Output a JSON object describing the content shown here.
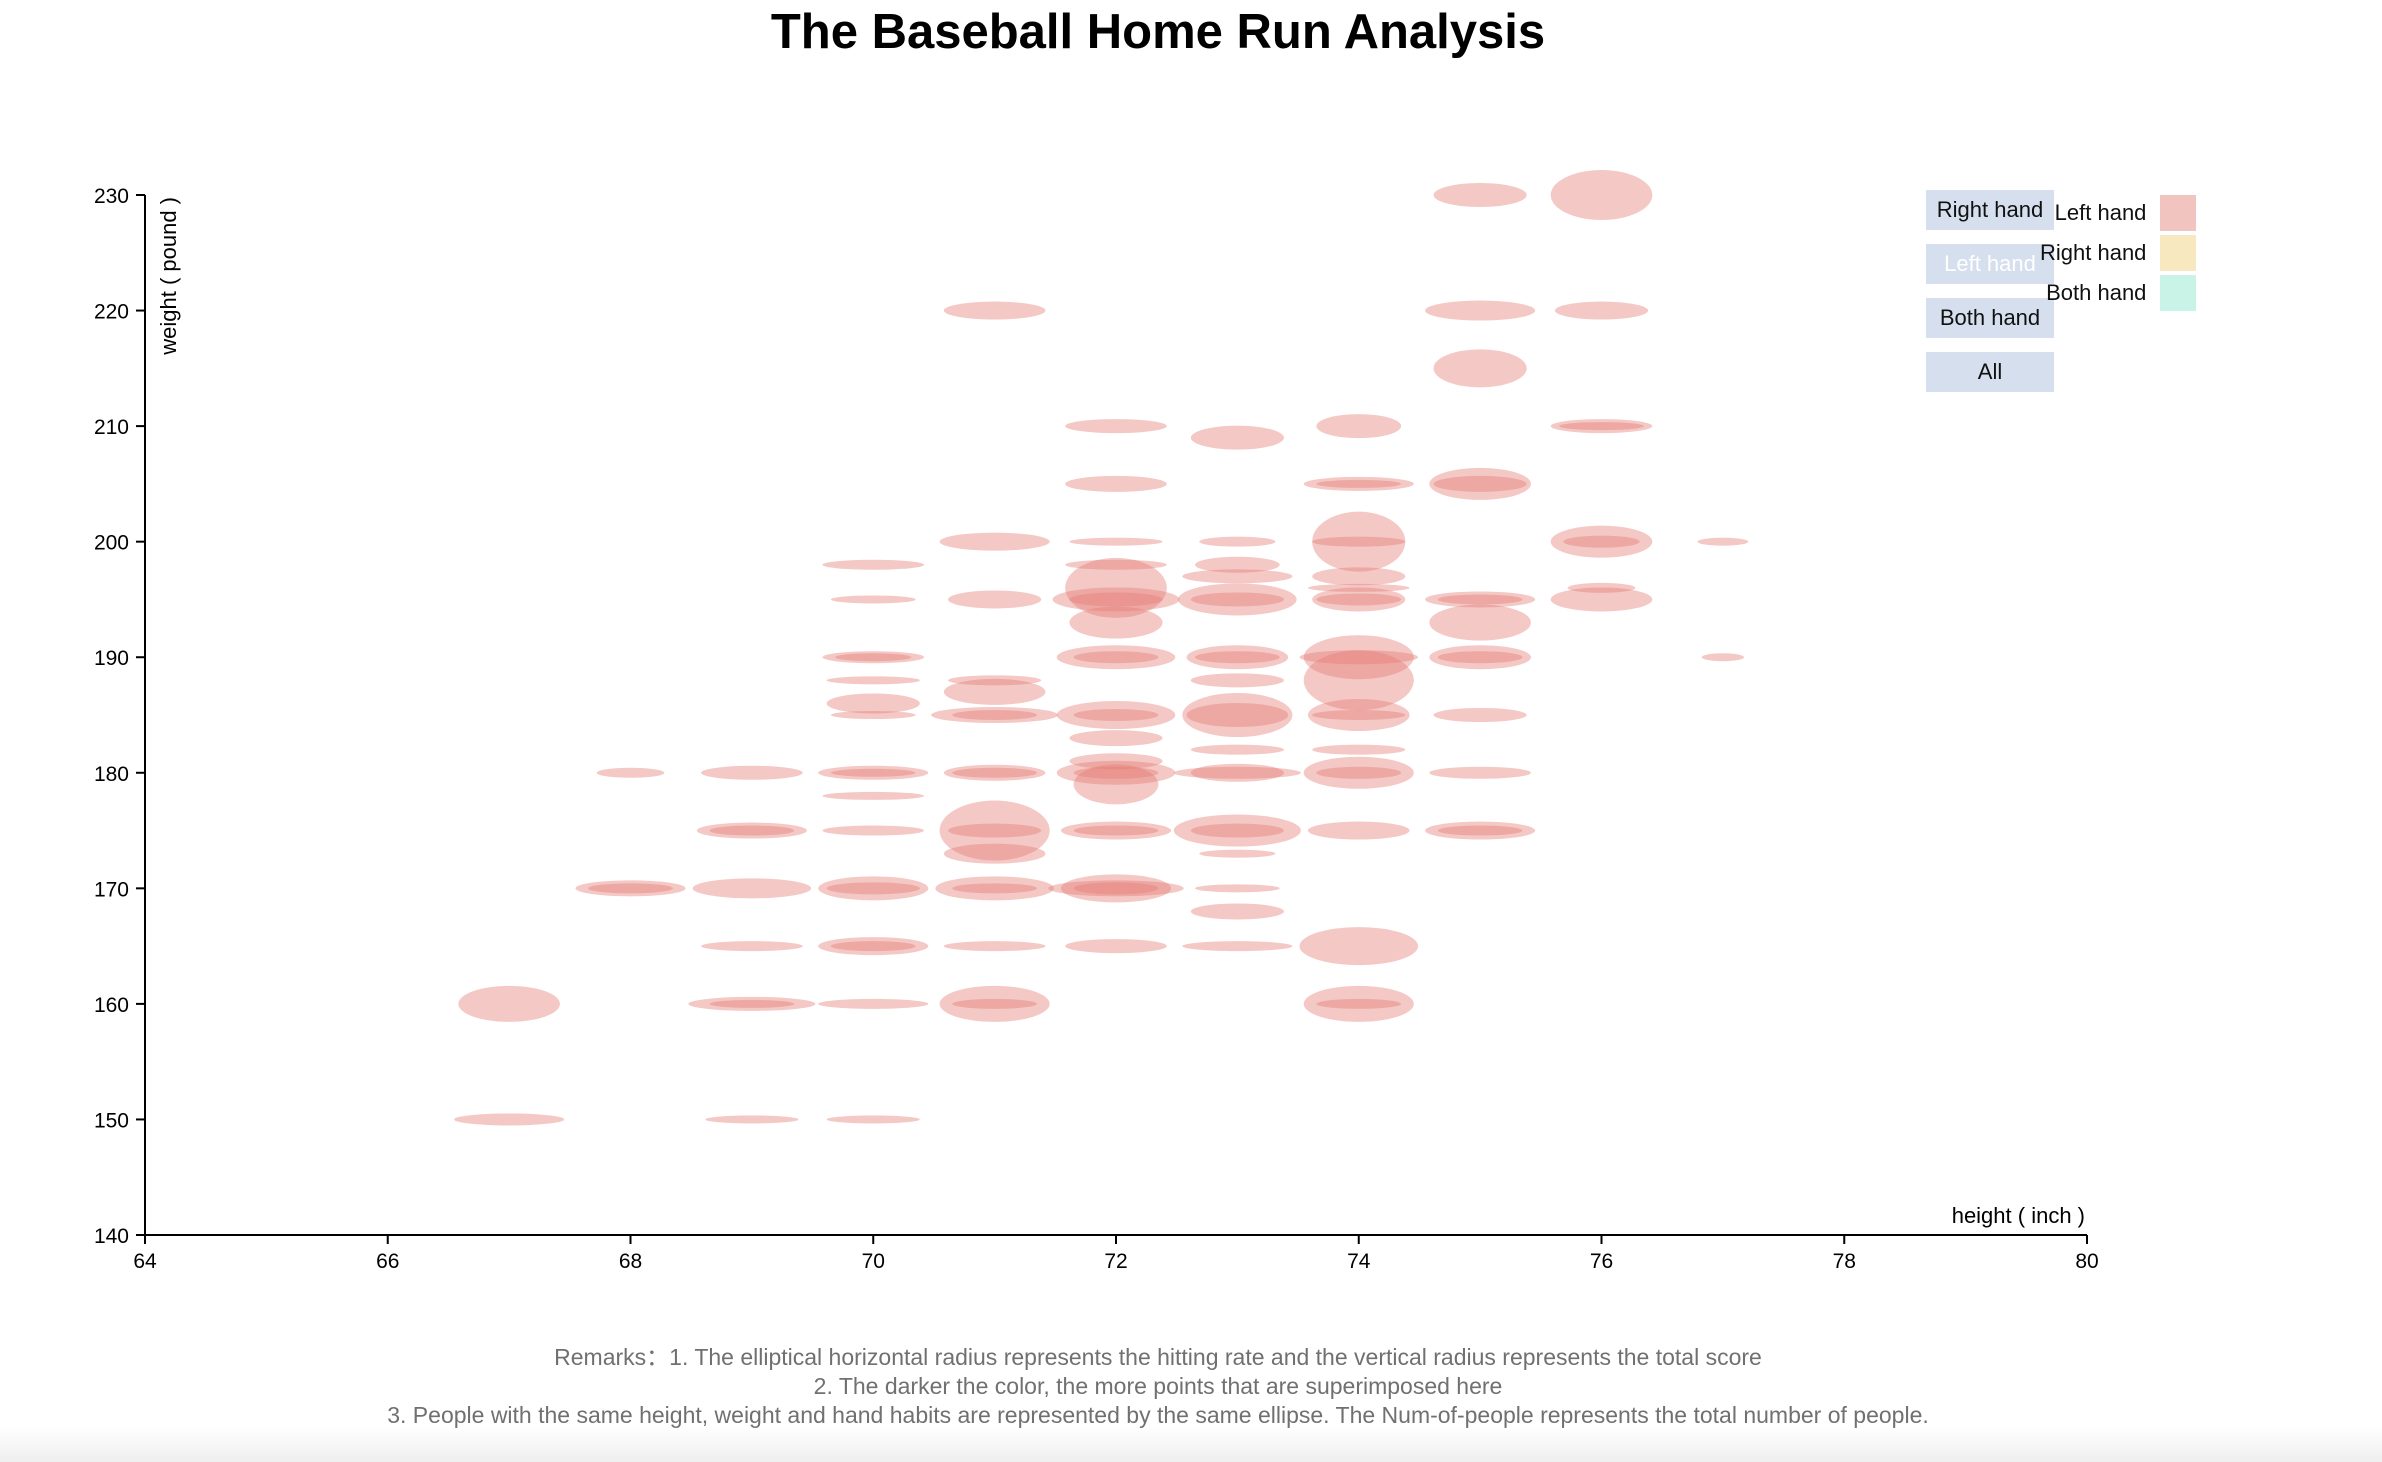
{
  "chart_data": {
    "type": "scatter",
    "title": "The Baseball Home Run Analysis",
    "xlabel": "height ( inch )",
    "ylabel": "weight ( pound )",
    "xlim": [
      64,
      80
    ],
    "ylim": [
      140,
      230
    ],
    "x_ticks": [
      64,
      66,
      68,
      70,
      72,
      74,
      76,
      78,
      80
    ],
    "y_ticks": [
      140,
      150,
      160,
      170,
      180,
      190,
      200,
      210,
      220,
      230
    ],
    "grid": false,
    "legend": {
      "position": "top-right",
      "entries": [
        {
          "name": "Left hand",
          "color": "#f2c4c0"
        },
        {
          "name": "Right hand",
          "color": "#f8e8c0"
        },
        {
          "name": "Both hand",
          "color": "#c8f3e6"
        }
      ]
    },
    "selected_filter": "Left hand",
    "encoding": {
      "rx": "hitting rate",
      "ry": "total score",
      "color": "#e57c74"
    },
    "points": [
      {
        "x": 67,
        "y": 160,
        "rx": 1.2,
        "ry": 18
      },
      {
        "x": 67,
        "y": 150,
        "rx": 1.3,
        "ry": 6
      },
      {
        "x": 68,
        "y": 180,
        "rx": 0.8,
        "ry": 5
      },
      {
        "x": 68,
        "y": 170,
        "rx": 1.3,
        "ry": 8
      },
      {
        "x": 68,
        "y": 170,
        "rx": 1.0,
        "ry": 5
      },
      {
        "x": 69,
        "y": 180,
        "rx": 1.2,
        "ry": 7
      },
      {
        "x": 69,
        "y": 175,
        "rx": 1.3,
        "ry": 8
      },
      {
        "x": 69,
        "y": 175,
        "rx": 1.0,
        "ry": 5
      },
      {
        "x": 69,
        "y": 170,
        "rx": 1.4,
        "ry": 10
      },
      {
        "x": 69,
        "y": 165,
        "rx": 1.2,
        "ry": 5
      },
      {
        "x": 69,
        "y": 160,
        "rx": 1.5,
        "ry": 7
      },
      {
        "x": 69,
        "y": 160,
        "rx": 1.0,
        "ry": 4
      },
      {
        "x": 69,
        "y": 150,
        "rx": 1.1,
        "ry": 4
      },
      {
        "x": 70,
        "y": 198,
        "rx": 1.2,
        "ry": 5
      },
      {
        "x": 70,
        "y": 195,
        "rx": 1.0,
        "ry": 4
      },
      {
        "x": 70,
        "y": 190,
        "rx": 1.2,
        "ry": 6
      },
      {
        "x": 70,
        "y": 190,
        "rx": 0.9,
        "ry": 4
      },
      {
        "x": 70,
        "y": 188,
        "rx": 1.1,
        "ry": 4
      },
      {
        "x": 70,
        "y": 186,
        "rx": 1.1,
        "ry": 10
      },
      {
        "x": 70,
        "y": 185,
        "rx": 1.0,
        "ry": 4
      },
      {
        "x": 70,
        "y": 180,
        "rx": 1.3,
        "ry": 7
      },
      {
        "x": 70,
        "y": 180,
        "rx": 1.0,
        "ry": 4
      },
      {
        "x": 70,
        "y": 178,
        "rx": 1.2,
        "ry": 4
      },
      {
        "x": 70,
        "y": 175,
        "rx": 1.2,
        "ry": 5
      },
      {
        "x": 70,
        "y": 170,
        "rx": 1.3,
        "ry": 12
      },
      {
        "x": 70,
        "y": 170,
        "rx": 1.1,
        "ry": 6
      },
      {
        "x": 70,
        "y": 165,
        "rx": 1.3,
        "ry": 9
      },
      {
        "x": 70,
        "y": 165,
        "rx": 1.0,
        "ry": 5
      },
      {
        "x": 70,
        "y": 160,
        "rx": 1.3,
        "ry": 5
      },
      {
        "x": 70,
        "y": 150,
        "rx": 1.1,
        "ry": 4
      },
      {
        "x": 71,
        "y": 220,
        "rx": 1.2,
        "ry": 9
      },
      {
        "x": 71,
        "y": 200,
        "rx": 1.3,
        "ry": 9
      },
      {
        "x": 71,
        "y": 195,
        "rx": 1.1,
        "ry": 9
      },
      {
        "x": 71,
        "y": 188,
        "rx": 1.1,
        "ry": 5
      },
      {
        "x": 71,
        "y": 187,
        "rx": 1.2,
        "ry": 13
      },
      {
        "x": 71,
        "y": 185,
        "rx": 1.5,
        "ry": 8
      },
      {
        "x": 71,
        "y": 185,
        "rx": 1.0,
        "ry": 5
      },
      {
        "x": 71,
        "y": 180,
        "rx": 1.2,
        "ry": 8
      },
      {
        "x": 71,
        "y": 180,
        "rx": 1.0,
        "ry": 5
      },
      {
        "x": 71,
        "y": 175,
        "rx": 1.3,
        "ry": 30
      },
      {
        "x": 71,
        "y": 175,
        "rx": 1.1,
        "ry": 7
      },
      {
        "x": 71,
        "y": 173,
        "rx": 1.2,
        "ry": 10
      },
      {
        "x": 71,
        "y": 170,
        "rx": 1.4,
        "ry": 12
      },
      {
        "x": 71,
        "y": 170,
        "rx": 1.0,
        "ry": 5
      },
      {
        "x": 71,
        "y": 165,
        "rx": 1.2,
        "ry": 5
      },
      {
        "x": 71,
        "y": 160,
        "rx": 1.3,
        "ry": 18
      },
      {
        "x": 71,
        "y": 160,
        "rx": 1.0,
        "ry": 5
      },
      {
        "x": 72,
        "y": 210,
        "rx": 1.2,
        "ry": 7
      },
      {
        "x": 72,
        "y": 205,
        "rx": 1.2,
        "ry": 8
      },
      {
        "x": 72,
        "y": 200,
        "rx": 1.1,
        "ry": 4
      },
      {
        "x": 72,
        "y": 198,
        "rx": 1.2,
        "ry": 5
      },
      {
        "x": 72,
        "y": 196,
        "rx": 1.2,
        "ry": 30
      },
      {
        "x": 72,
        "y": 195,
        "rx": 1.5,
        "ry": 12
      },
      {
        "x": 72,
        "y": 195,
        "rx": 1.1,
        "ry": 7
      },
      {
        "x": 72,
        "y": 193,
        "rx": 1.1,
        "ry": 16
      },
      {
        "x": 72,
        "y": 190,
        "rx": 1.4,
        "ry": 12
      },
      {
        "x": 72,
        "y": 190,
        "rx": 1.0,
        "ry": 6
      },
      {
        "x": 72,
        "y": 185,
        "rx": 1.4,
        "ry": 14
      },
      {
        "x": 72,
        "y": 185,
        "rx": 1.0,
        "ry": 6
      },
      {
        "x": 72,
        "y": 183,
        "rx": 1.1,
        "ry": 8
      },
      {
        "x": 72,
        "y": 181,
        "rx": 1.1,
        "ry": 8
      },
      {
        "x": 72,
        "y": 179,
        "rx": 1.0,
        "ry": 20
      },
      {
        "x": 72,
        "y": 180,
        "rx": 1.4,
        "ry": 12
      },
      {
        "x": 72,
        "y": 180,
        "rx": 1.0,
        "ry": 6
      },
      {
        "x": 72,
        "y": 175,
        "rx": 1.3,
        "ry": 9
      },
      {
        "x": 72,
        "y": 175,
        "rx": 1.0,
        "ry": 5
      },
      {
        "x": 72,
        "y": 170,
        "rx": 1.6,
        "ry": 8
      },
      {
        "x": 72,
        "y": 170,
        "rx": 1.3,
        "ry": 14
      },
      {
        "x": 72,
        "y": 170,
        "rx": 1.0,
        "ry": 6
      },
      {
        "x": 72,
        "y": 165,
        "rx": 1.2,
        "ry": 7
      },
      {
        "x": 73,
        "y": 209,
        "rx": 1.1,
        "ry": 12
      },
      {
        "x": 73,
        "y": 200,
        "rx": 0.9,
        "ry": 5
      },
      {
        "x": 73,
        "y": 198,
        "rx": 1.0,
        "ry": 8
      },
      {
        "x": 73,
        "y": 197,
        "rx": 1.3,
        "ry": 7
      },
      {
        "x": 73,
        "y": 195,
        "rx": 1.4,
        "ry": 16
      },
      {
        "x": 73,
        "y": 195,
        "rx": 1.1,
        "ry": 7
      },
      {
        "x": 73,
        "y": 190,
        "rx": 1.2,
        "ry": 12
      },
      {
        "x": 73,
        "y": 190,
        "rx": 1.0,
        "ry": 6
      },
      {
        "x": 73,
        "y": 188,
        "rx": 1.1,
        "ry": 7
      },
      {
        "x": 73,
        "y": 185,
        "rx": 1.3,
        "ry": 22
      },
      {
        "x": 73,
        "y": 185,
        "rx": 1.2,
        "ry": 12
      },
      {
        "x": 73,
        "y": 182,
        "rx": 1.1,
        "ry": 5
      },
      {
        "x": 73,
        "y": 180,
        "rx": 1.5,
        "ry": 6
      },
      {
        "x": 73,
        "y": 180,
        "rx": 1.1,
        "ry": 9
      },
      {
        "x": 73,
        "y": 175,
        "rx": 1.5,
        "ry": 16
      },
      {
        "x": 73,
        "y": 175,
        "rx": 1.1,
        "ry": 7
      },
      {
        "x": 73,
        "y": 173,
        "rx": 0.9,
        "ry": 4
      },
      {
        "x": 73,
        "y": 170,
        "rx": 1.0,
        "ry": 4
      },
      {
        "x": 73,
        "y": 168,
        "rx": 1.1,
        "ry": 8
      },
      {
        "x": 73,
        "y": 165,
        "rx": 1.3,
        "ry": 5
      },
      {
        "x": 74,
        "y": 210,
        "rx": 1.0,
        "ry": 12
      },
      {
        "x": 74,
        "y": 205,
        "rx": 1.3,
        "ry": 7
      },
      {
        "x": 74,
        "y": 205,
        "rx": 1.0,
        "ry": 4
      },
      {
        "x": 74,
        "y": 200,
        "rx": 1.1,
        "ry": 30
      },
      {
        "x": 74,
        "y": 200,
        "rx": 1.1,
        "ry": 5
      },
      {
        "x": 74,
        "y": 197,
        "rx": 1.1,
        "ry": 9
      },
      {
        "x": 74,
        "y": 195,
        "rx": 1.1,
        "ry": 12
      },
      {
        "x": 74,
        "y": 195,
        "rx": 1.0,
        "ry": 6
      },
      {
        "x": 74,
        "y": 196,
        "rx": 1.2,
        "ry": 4
      },
      {
        "x": 74,
        "y": 190,
        "rx": 1.3,
        "ry": 22
      },
      {
        "x": 74,
        "y": 190,
        "rx": 1.4,
        "ry": 7
      },
      {
        "x": 74,
        "y": 188,
        "rx": 1.3,
        "ry": 30
      },
      {
        "x": 74,
        "y": 185,
        "rx": 1.2,
        "ry": 16
      },
      {
        "x": 74,
        "y": 185,
        "rx": 1.1,
        "ry": 5
      },
      {
        "x": 74,
        "y": 182,
        "rx": 1.1,
        "ry": 5
      },
      {
        "x": 74,
        "y": 180,
        "rx": 1.3,
        "ry": 16
      },
      {
        "x": 74,
        "y": 180,
        "rx": 1.0,
        "ry": 6
      },
      {
        "x": 74,
        "y": 175,
        "rx": 1.2,
        "ry": 9
      },
      {
        "x": 74,
        "y": 165,
        "rx": 1.4,
        "ry": 19
      },
      {
        "x": 74,
        "y": 160,
        "rx": 1.3,
        "ry": 18
      },
      {
        "x": 74,
        "y": 160,
        "rx": 1.0,
        "ry": 5
      },
      {
        "x": 75,
        "y": 230,
        "rx": 1.1,
        "ry": 12
      },
      {
        "x": 75,
        "y": 220,
        "rx": 1.3,
        "ry": 10
      },
      {
        "x": 75,
        "y": 215,
        "rx": 1.1,
        "ry": 19
      },
      {
        "x": 75,
        "y": 205,
        "rx": 1.2,
        "ry": 16
      },
      {
        "x": 75,
        "y": 205,
        "rx": 1.1,
        "ry": 8
      },
      {
        "x": 75,
        "y": 195,
        "rx": 1.3,
        "ry": 8
      },
      {
        "x": 75,
        "y": 195,
        "rx": 1.0,
        "ry": 5
      },
      {
        "x": 75,
        "y": 193,
        "rx": 1.2,
        "ry": 18
      },
      {
        "x": 75,
        "y": 190,
        "rx": 1.2,
        "ry": 12
      },
      {
        "x": 75,
        "y": 190,
        "rx": 1.0,
        "ry": 6
      },
      {
        "x": 75,
        "y": 185,
        "rx": 1.1,
        "ry": 7
      },
      {
        "x": 75,
        "y": 180,
        "rx": 1.2,
        "ry": 6
      },
      {
        "x": 75,
        "y": 175,
        "rx": 1.3,
        "ry": 9
      },
      {
        "x": 75,
        "y": 175,
        "rx": 1.0,
        "ry": 5
      },
      {
        "x": 76,
        "y": 230,
        "rx": 1.2,
        "ry": 25
      },
      {
        "x": 76,
        "y": 220,
        "rx": 1.1,
        "ry": 9
      },
      {
        "x": 76,
        "y": 210,
        "rx": 1.2,
        "ry": 7
      },
      {
        "x": 76,
        "y": 210,
        "rx": 1.0,
        "ry": 4
      },
      {
        "x": 76,
        "y": 200,
        "rx": 1.2,
        "ry": 16
      },
      {
        "x": 76,
        "y": 200,
        "rx": 0.9,
        "ry": 6
      },
      {
        "x": 76,
        "y": 196,
        "rx": 0.8,
        "ry": 5
      },
      {
        "x": 76,
        "y": 195,
        "rx": 1.2,
        "ry": 12
      },
      {
        "x": 77,
        "y": 200,
        "rx": 0.6,
        "ry": 4
      },
      {
        "x": 77,
        "y": 190,
        "rx": 0.5,
        "ry": 4
      }
    ]
  },
  "filters": {
    "right_hand": "Right hand",
    "left_hand": "Left hand",
    "both_hand": "Both hand",
    "all": "All"
  },
  "remarks": {
    "line1": "Remarks：1. The elliptical horizontal radius represents the hitting rate and the vertical radius represents the total score",
    "line2": "2. The darker the color, the more points that are superimposed here",
    "line3": "3. People with the same height, weight and hand habits are represented by the same ellipse. The Num-of-people represents the total number of people."
  }
}
